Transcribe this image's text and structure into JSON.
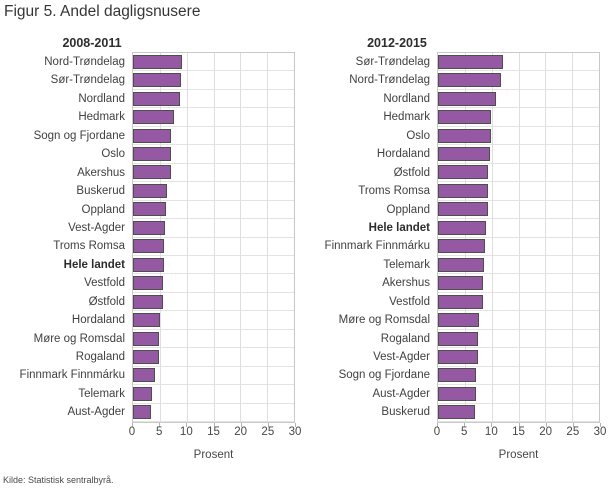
{
  "title": "Figur 5. Andel dagligsnusere",
  "source": "Kilde: Statistisk sentralbyrå.",
  "colors": {
    "bar_fill": "#9558a2",
    "bar_border": "#4e4e4e",
    "gridline": "#dedede",
    "plot_border": "#c9c9c9"
  },
  "chart_data": [
    {
      "type": "bar",
      "orientation": "horizontal",
      "title": "2008-2011",
      "xlabel": "Prosent",
      "xlim": [
        0,
        30
      ],
      "xticks": [
        0,
        5,
        10,
        15,
        20,
        25,
        30
      ],
      "grid": true,
      "bold_category": "Hele landet",
      "categories": [
        "Nord-Trøndelag",
        "Sør-Trøndelag",
        "Nordland",
        "Hedmark",
        "Sogn og Fjordane",
        "Oslo",
        "Akershus",
        "Buskerud",
        "Oppland",
        "Vest-Agder",
        "Troms Romsa",
        "Hele landet",
        "Vestfold",
        "Østfold",
        "Hordaland",
        "Møre og Romsdal",
        "Rogaland",
        "Finnmark Finnmárku",
        "Telemark",
        "Aust-Agder"
      ],
      "values": [
        9.2,
        8.9,
        8.8,
        7.7,
        7.1,
        7.0,
        7.0,
        6.4,
        6.2,
        5.9,
        5.8,
        5.8,
        5.5,
        5.5,
        5.1,
        4.8,
        4.8,
        4.1,
        3.5,
        3.3
      ]
    },
    {
      "type": "bar",
      "orientation": "horizontal",
      "title": "2012-2015",
      "xlabel": "Prosent",
      "xlim": [
        0,
        30
      ],
      "xticks": [
        0,
        5,
        10,
        15,
        20,
        25,
        30
      ],
      "grid": true,
      "bold_category": "Hele landet",
      "categories": [
        "Sør-Trøndelag",
        "Nord-Trøndelag",
        "Nordland",
        "Hedmark",
        "Oslo",
        "Hordaland",
        "Østfold",
        "Troms Romsa",
        "Oppland",
        "Hele landet",
        "Finnmark Finnmárku",
        "Telemark",
        "Akershus",
        "Vestfold",
        "Møre og Romsdal",
        "Rogaland",
        "Vest-Agder",
        "Sogn og Fjordane",
        "Aust-Agder",
        "Buskerud"
      ],
      "values": [
        12.1,
        11.8,
        10.9,
        9.8,
        9.8,
        9.6,
        9.4,
        9.4,
        9.3,
        9.0,
        8.7,
        8.6,
        8.4,
        8.4,
        7.7,
        7.5,
        7.4,
        7.0,
        7.0,
        6.9
      ]
    }
  ]
}
